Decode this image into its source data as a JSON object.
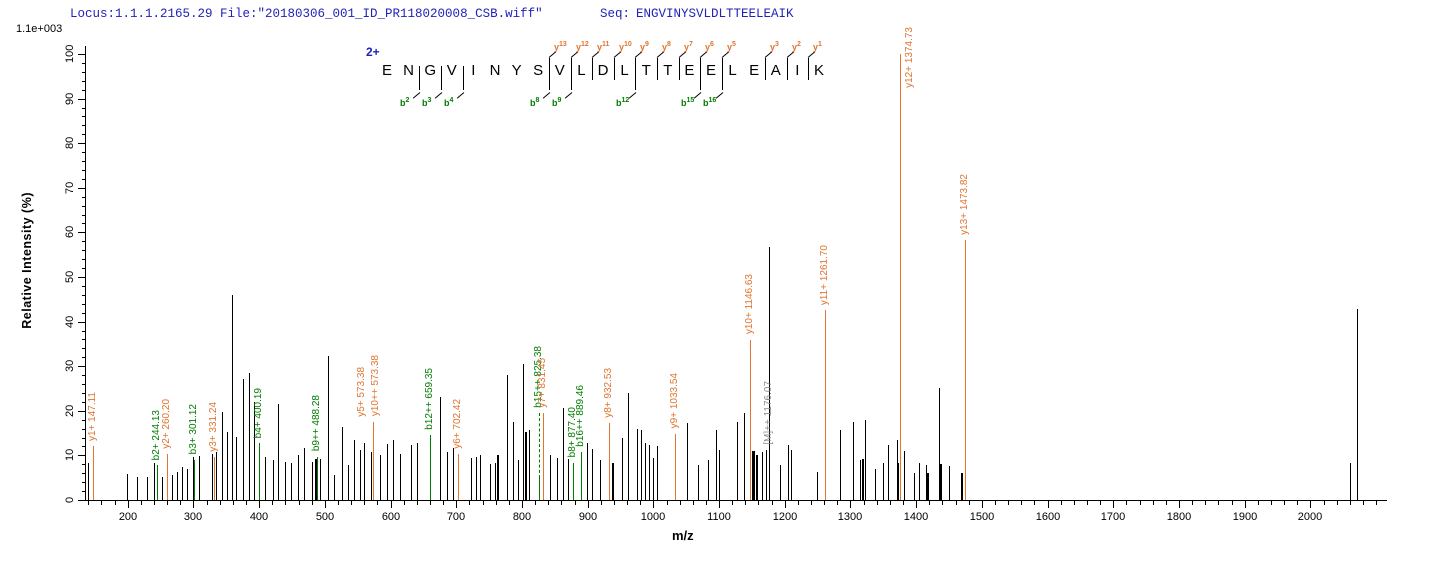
{
  "header": {
    "locus_file": "Locus:1.1.1.2165.29 File:\"20180306_001_ID_PR118020008_CSB.wiff\"",
    "seq_label": "Seq:",
    "seq_value": "ENGVINYSVLDLTTEELEAIK",
    "base_peak_intensity": "1.1e+003"
  },
  "axes": {
    "x_label": "m/z",
    "y_label": "Relative  Intensity (%)",
    "x_range": [
      135,
      2115
    ],
    "x_minor_step": 20,
    "x_major_ticks": [
      200,
      300,
      400,
      500,
      600,
      700,
      800,
      900,
      1000,
      1100,
      1200,
      1300,
      1400,
      1500,
      1600,
      1700,
      1800,
      1900,
      2000
    ],
    "y_range": [
      0,
      100
    ],
    "y_major_step": 10,
    "y_minor_step": 2
  },
  "sequence": {
    "charge_label": "2+",
    "residues": [
      "E",
      "N",
      "G",
      "V",
      "I",
      "N",
      "Y",
      "S",
      "V",
      "L",
      "D",
      "L",
      "T",
      "T",
      "E",
      "E",
      "L",
      "E",
      "A",
      "I",
      "K"
    ],
    "y_ions": [
      {
        "num": 13,
        "cleavage": 8
      },
      {
        "num": 12,
        "cleavage": 9
      },
      {
        "num": 11,
        "cleavage": 10
      },
      {
        "num": 10,
        "cleavage": 11
      },
      {
        "num": 9,
        "cleavage": 12
      },
      {
        "num": 8,
        "cleavage": 13
      },
      {
        "num": 7,
        "cleavage": 14
      },
      {
        "num": 6,
        "cleavage": 15
      },
      {
        "num": 5,
        "cleavage": 16
      },
      {
        "num": 3,
        "cleavage": 18
      },
      {
        "num": 2,
        "cleavage": 19
      },
      {
        "num": 1,
        "cleavage": 20
      }
    ],
    "b_ions": [
      {
        "num": 2,
        "cleavage": 2
      },
      {
        "num": 3,
        "cleavage": 3
      },
      {
        "num": 4,
        "cleavage": 4
      },
      {
        "num": 8,
        "cleavage": 8
      },
      {
        "num": 9,
        "cleavage": 9
      },
      {
        "num": 12,
        "cleavage": 12
      },
      {
        "num": 15,
        "cleavage": 15
      },
      {
        "num": 16,
        "cleavage": 16
      }
    ]
  },
  "chart_data": {
    "type": "bar",
    "xlabel": "m/z",
    "ylabel": "Relative  Intensity (%)",
    "xlim": [
      135,
      2115
    ],
    "ylim": [
      0,
      100
    ],
    "colors": {
      "unassigned_peak": "#000000",
      "y_ion": "#e07430",
      "b_ion": "#007c00",
      "precursor_label": "#8c8c8c",
      "header_text": "#2222bb"
    },
    "peaks": [
      {
        "mz": 139,
        "pct": 8.4
      },
      {
        "mz": 147.11,
        "pct": 12,
        "type": "y",
        "labels": [
          {
            "text": "y1+ 147.11"
          }
        ]
      },
      {
        "mz": 198.5,
        "pct": 5.8
      },
      {
        "mz": 214,
        "pct": 5.2
      },
      {
        "mz": 229,
        "pct": 5.1
      },
      {
        "mz": 240,
        "pct": 8.4
      },
      {
        "mz": 244.13,
        "pct": 7.8,
        "type": "b",
        "labels": [
          {
            "text": "b2+ 244.13"
          }
        ]
      },
      {
        "mz": 252.7,
        "pct": 5.2
      },
      {
        "mz": 260.2,
        "pct": 10.3,
        "type": "y",
        "labels": [
          {
            "text": "y2+ 260.20"
          }
        ]
      },
      {
        "mz": 267,
        "pct": 5.7
      },
      {
        "mz": 274.6,
        "pct": 6.3
      },
      {
        "mz": 282,
        "pct": 7.5
      },
      {
        "mz": 289.8,
        "pct": 6.9
      },
      {
        "mz": 299.5,
        "pct": 9.6
      },
      {
        "mz": 301.12,
        "pct": 9,
        "type": "b",
        "labels": [
          {
            "text": "b3+ 301.12"
          }
        ]
      },
      {
        "mz": 308.5,
        "pct": 9.9
      },
      {
        "mz": 328.5,
        "pct": 10.3
      },
      {
        "mz": 331.24,
        "pct": 9.7,
        "type": "y",
        "labels": [
          {
            "text": "y3+ 331.24"
          }
        ]
      },
      {
        "mz": 334.5,
        "pct": 10.8
      },
      {
        "mz": 343,
        "pct": 19.8
      },
      {
        "mz": 350.7,
        "pct": 15.3
      },
      {
        "mz": 358.3,
        "pct": 45.9
      },
      {
        "mz": 364.4,
        "pct": 14.2
      },
      {
        "mz": 375,
        "pct": 27.2
      },
      {
        "mz": 385,
        "pct": 28.5
      },
      {
        "mz": 392.7,
        "pct": 22
      },
      {
        "mz": 400.19,
        "pct": 12.7,
        "type": "b",
        "labels": [
          {
            "text": "b4+ 400.19"
          }
        ]
      },
      {
        "mz": 409,
        "pct": 9.7
      },
      {
        "mz": 421.6,
        "pct": 9
      },
      {
        "mz": 429.2,
        "pct": 21.6
      },
      {
        "mz": 439.4,
        "pct": 8.6
      },
      {
        "mz": 448.5,
        "pct": 8.2
      },
      {
        "mz": 459.7,
        "pct": 10.1
      },
      {
        "mz": 468.8,
        "pct": 11.6
      },
      {
        "mz": 480,
        "pct": 8.6
      },
      {
        "mz": 486,
        "pct": 9.3,
        "w": 2
      },
      {
        "mz": 488.28,
        "pct": 9.7,
        "type": "b",
        "labels": [
          {
            "text": "b9++ 488.28"
          }
        ]
      },
      {
        "mz": 492,
        "pct": 9.3
      },
      {
        "mz": 504.4,
        "pct": 32.2
      },
      {
        "mz": 514.5,
        "pct": 5.6
      },
      {
        "mz": 525.7,
        "pct": 16.4
      },
      {
        "mz": 535.8,
        "pct": 7.8
      },
      {
        "mz": 544.9,
        "pct": 13.4
      },
      {
        "mz": 553.6,
        "pct": 11.2
      },
      {
        "mz": 560,
        "pct": 12.7
      },
      {
        "mz": 570,
        "pct": 10.8
      },
      {
        "mz": 573.38,
        "pct": 17.5,
        "type": "y",
        "labels": [
          {
            "text": "y5+ 573.38",
            "dx": -17
          },
          {
            "text": "y10++ 573.38",
            "dx": -3
          }
        ]
      },
      {
        "mz": 584,
        "pct": 10.1
      },
      {
        "mz": 595.3,
        "pct": 12.5
      },
      {
        "mz": 604.5,
        "pct": 13.4
      },
      {
        "mz": 614.7,
        "pct": 10.3
      },
      {
        "mz": 631.5,
        "pct": 12.3
      },
      {
        "mz": 639.8,
        "pct": 12.8
      },
      {
        "mz": 659.35,
        "pct": 14.5,
        "type": "b",
        "labels": [
          {
            "text": "b12++ 659.35"
          }
        ]
      },
      {
        "mz": 675.3,
        "pct": 23.1
      },
      {
        "mz": 685.5,
        "pct": 10.8
      },
      {
        "mz": 695.6,
        "pct": 11.6
      },
      {
        "mz": 702.42,
        "pct": 10.4,
        "type": "y",
        "labels": [
          {
            "text": "y6+ 702.42"
          }
        ]
      },
      {
        "mz": 723,
        "pct": 9.4
      },
      {
        "mz": 730,
        "pct": 9.6
      },
      {
        "mz": 736,
        "pct": 10
      },
      {
        "mz": 751,
        "pct": 8
      },
      {
        "mz": 759,
        "pct": 8.3
      },
      {
        "mz": 763,
        "pct": 10,
        "w": 2
      },
      {
        "mz": 777,
        "pct": 28
      },
      {
        "mz": 786,
        "pct": 17.6
      },
      {
        "mz": 794,
        "pct": 9
      },
      {
        "mz": 802,
        "pct": 30.5
      },
      {
        "mz": 806,
        "pct": 15.3,
        "w": 2
      },
      {
        "mz": 810,
        "pct": 15.7
      },
      {
        "mz": 825.38,
        "pct": 5,
        "type": "b",
        "dash_to": 19.5,
        "labels": [
          {
            "text": "b15++ 825.38",
            "bottom": 20.7
          }
        ]
      },
      {
        "mz": 831.45,
        "pct": 19.4,
        "type": "y",
        "labels": [
          {
            "text": "y7+ 831.45"
          }
        ]
      },
      {
        "mz": 843,
        "pct": 10
      },
      {
        "mz": 853,
        "pct": 9.5
      },
      {
        "mz": 862,
        "pct": 20.6
      },
      {
        "mz": 870,
        "pct": 9.3
      },
      {
        "mz": 877.4,
        "pct": 8.3,
        "type": "b",
        "labels": [
          {
            "text": "b8+ 877.40"
          }
        ]
      },
      {
        "mz": 889.46,
        "pct": 10.8,
        "type": "b",
        "labels": [
          {
            "text": "b16++ 889.46"
          }
        ]
      },
      {
        "mz": 899,
        "pct": 12.7
      },
      {
        "mz": 907,
        "pct": 11.5
      },
      {
        "mz": 919,
        "pct": 9
      },
      {
        "mz": 932.53,
        "pct": 17.2,
        "type": "y",
        "labels": [
          {
            "text": "y8+ 932.53"
          }
        ]
      },
      {
        "mz": 938,
        "pct": 8.2,
        "w": 2
      },
      {
        "mz": 952,
        "pct": 13.8
      },
      {
        "mz": 962,
        "pct": 24
      },
      {
        "mz": 975,
        "pct": 16
      },
      {
        "mz": 981,
        "pct": 15.7
      },
      {
        "mz": 988,
        "pct": 12.7
      },
      {
        "mz": 993,
        "pct": 12.3
      },
      {
        "mz": 1000,
        "pct": 9.4
      },
      {
        "mz": 1006,
        "pct": 12
      },
      {
        "mz": 1033.54,
        "pct": 14.8,
        "type": "y",
        "labels": [
          {
            "text": "y9+ 1033.54"
          }
        ]
      },
      {
        "mz": 1051,
        "pct": 17.3
      },
      {
        "mz": 1068,
        "pct": 7.8
      },
      {
        "mz": 1083,
        "pct": 9
      },
      {
        "mz": 1095,
        "pct": 15.7
      },
      {
        "mz": 1100,
        "pct": 11.3
      },
      {
        "mz": 1127,
        "pct": 17.6
      },
      {
        "mz": 1138,
        "pct": 19.4
      },
      {
        "mz": 1146.63,
        "pct": 35.9,
        "type": "y",
        "labels": [
          {
            "text": "y10+ 1146.63"
          }
        ]
      },
      {
        "mz": 1151,
        "pct": 11,
        "w": 3
      },
      {
        "mz": 1157,
        "pct": 10.2,
        "w": 2
      },
      {
        "mz": 1165,
        "pct": 10.8
      },
      {
        "mz": 1171,
        "pct": 11.2
      },
      {
        "mz": 1176.07,
        "pct": 56.8,
        "type": "m",
        "labels": [
          {
            "text": "[M]++ 1176.07",
            "bottom": 12.5
          }
        ]
      },
      {
        "mz": 1193,
        "pct": 7.8
      },
      {
        "mz": 1205,
        "pct": 12.3
      },
      {
        "mz": 1210,
        "pct": 11.3
      },
      {
        "mz": 1249,
        "pct": 6.3
      },
      {
        "mz": 1261.7,
        "pct": 42.6,
        "type": "y",
        "labels": [
          {
            "text": "y11+ 1261.70"
          }
        ]
      },
      {
        "mz": 1284,
        "pct": 15.8
      },
      {
        "mz": 1304,
        "pct": 17.5
      },
      {
        "mz": 1315,
        "pct": 9
      },
      {
        "mz": 1319,
        "pct": 9.3,
        "w": 2
      },
      {
        "mz": 1322,
        "pct": 17.9
      },
      {
        "mz": 1337,
        "pct": 6.9
      },
      {
        "mz": 1350,
        "pct": 8.2
      },
      {
        "mz": 1357,
        "pct": 12.3
      },
      {
        "mz": 1370.5,
        "pct": 13.4
      },
      {
        "mz": 1373,
        "pct": 8.2
      },
      {
        "mz": 1374.73,
        "pct": 100,
        "type": "y",
        "labels": [
          {
            "text": "y12+ 1374.73",
            "dx": 4,
            "bottom": 92.5
          }
        ]
      },
      {
        "mz": 1380.7,
        "pct": 11
      },
      {
        "mz": 1396,
        "pct": 6.1
      },
      {
        "mz": 1404.4,
        "pct": 8.2
      },
      {
        "mz": 1415,
        "pct": 7.8
      },
      {
        "mz": 1418.6,
        "pct": 6.1,
        "w": 2
      },
      {
        "mz": 1435,
        "pct": 25.2
      },
      {
        "mz": 1438,
        "pct": 8,
        "w": 2
      },
      {
        "mz": 1450.6,
        "pct": 7.6
      },
      {
        "mz": 1469.5,
        "pct": 6.1,
        "w": 2
      },
      {
        "mz": 1473.82,
        "pct": 58.3,
        "type": "y",
        "labels": [
          {
            "text": "y13+ 1473.82"
          }
        ]
      },
      {
        "mz": 2060.5,
        "pct": 8.4
      },
      {
        "mz": 2070.6,
        "pct": 42.8
      }
    ]
  }
}
